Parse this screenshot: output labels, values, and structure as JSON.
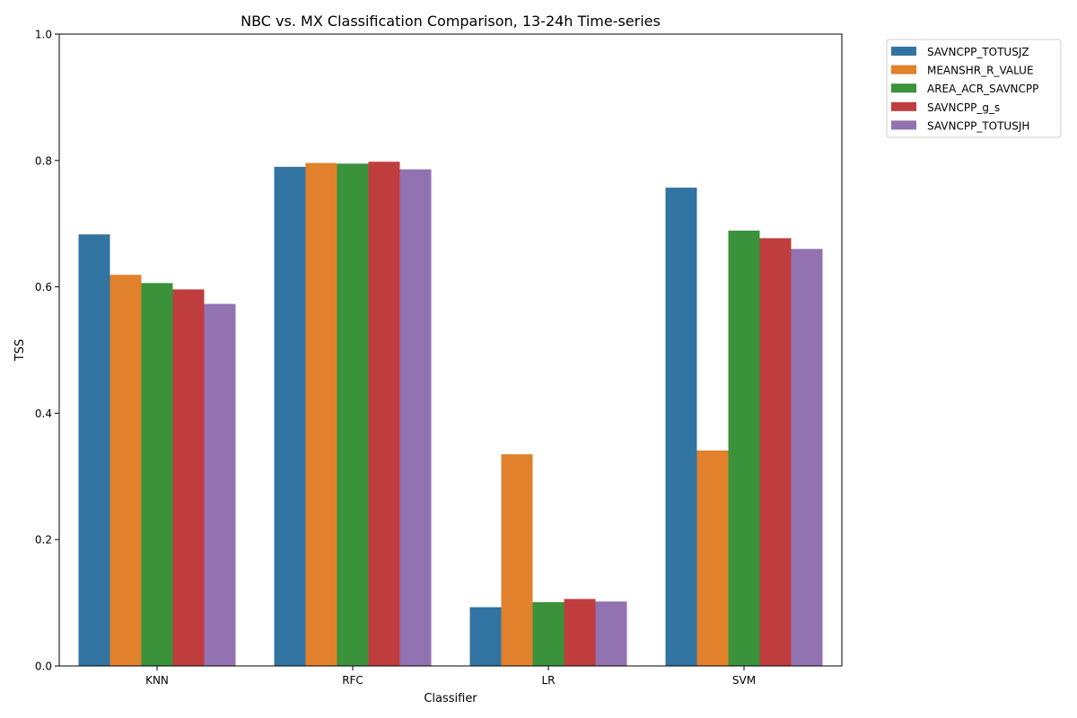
{
  "chart_data": {
    "type": "bar",
    "title": "NBC vs. MX Classification Comparison, 13-24h Time-series",
    "xlabel": "Classifier",
    "ylabel": "TSS",
    "categories": [
      "KNN",
      "RFC",
      "LR",
      "SVM"
    ],
    "ylim": [
      0,
      1.0
    ],
    "yticks": [
      "0.0",
      "0.2",
      "0.4",
      "0.6",
      "0.8",
      "1.0"
    ],
    "grid": false,
    "legend_position": "outside-top-right",
    "series": [
      {
        "name": "SAVNCPP_TOTUSJZ",
        "color": "#3274a1",
        "values": [
          0.683,
          0.79,
          0.093,
          0.757
        ]
      },
      {
        "name": "MEANSHR_R_VALUE",
        "color": "#e1812c",
        "values": [
          0.619,
          0.796,
          0.335,
          0.341
        ]
      },
      {
        "name": "AREA_ACR_SAVNCPP",
        "color": "#3a923a",
        "values": [
          0.606,
          0.795,
          0.101,
          0.689
        ]
      },
      {
        "name": "SAVNCPP_g_s",
        "color": "#c03d3e",
        "values": [
          0.596,
          0.798,
          0.106,
          0.677
        ]
      },
      {
        "name": "SAVNCPP_TOTUSJH",
        "color": "#9372b2",
        "values": [
          0.573,
          0.786,
          0.102,
          0.66
        ]
      }
    ]
  }
}
